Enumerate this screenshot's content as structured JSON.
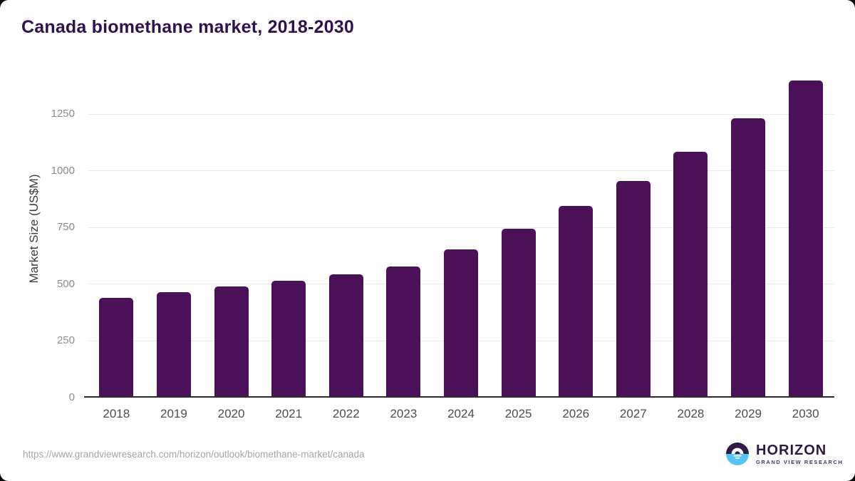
{
  "page": {
    "title": "Canada biomethane market, 2018-2030",
    "source_url": "https://www.grandviewresearch.com/horizon/outlook/biomethane-market/canada"
  },
  "logo": {
    "name": "HORIZON",
    "subtitle": "GRAND VIEW RESEARCH",
    "mark": "sun-over-water-circle-icon"
  },
  "colors": {
    "bar": "#4a1159",
    "title_text": "#2e1250",
    "gridline": "#ebebeb",
    "axis_line": "#2b2b2b",
    "y_tick_label": "#8c8c8c",
    "x_tick_label": "#4d4d4d",
    "y_axis_title": "#3d3d3d",
    "source_url_text": "#a6a6a6",
    "logo_purple": "#2e1a47",
    "logo_blue": "#55c5f2"
  },
  "chart_data": {
    "type": "bar",
    "title": "Canada biomethane market, 2018-2030",
    "xlabel": "",
    "ylabel": "Market Size (US$M)",
    "categories": [
      "2018",
      "2019",
      "2020",
      "2021",
      "2022",
      "2023",
      "2024",
      "2025",
      "2026",
      "2027",
      "2028",
      "2029",
      "2030"
    ],
    "values": [
      440,
      465,
      490,
      515,
      545,
      580,
      655,
      745,
      845,
      957,
      1086,
      1234,
      1400
    ],
    "yticks": [
      0,
      250,
      500,
      750,
      1000,
      1250
    ],
    "ylim": [
      0,
      1415
    ],
    "grid": "horizontal",
    "legend": "none",
    "bar_color": "#4a1159"
  }
}
